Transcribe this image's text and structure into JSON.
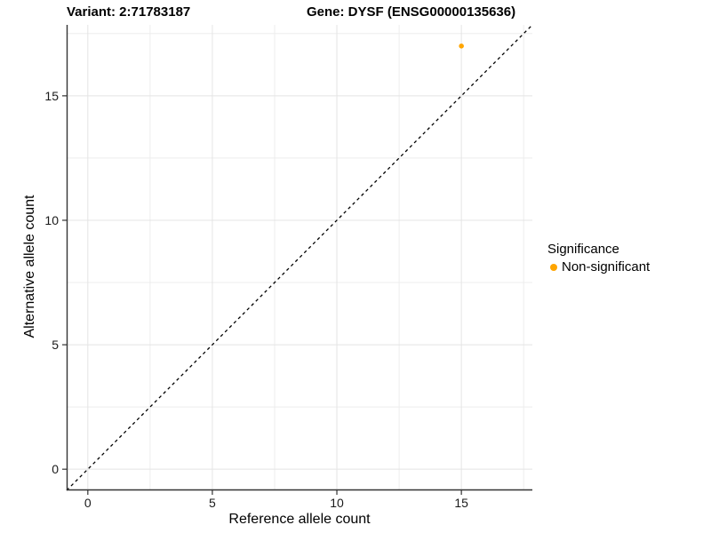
{
  "chart_data": {
    "type": "scatter",
    "titles": [
      "Variant: 2:71783187",
      "Gene: DYSF (ENSG00000135636)"
    ],
    "xlabel": "Reference allele count",
    "ylabel": "Alternative allele count",
    "xlim": [
      -0.85,
      17.85
    ],
    "ylim": [
      -0.85,
      17.85
    ],
    "x_ticks": [
      0,
      5,
      10,
      15
    ],
    "y_ticks": [
      0,
      5,
      10,
      15
    ],
    "x_minor_ticks": [
      2.5,
      7.5,
      12.5,
      17.5
    ],
    "y_minor_ticks": [
      2.5,
      7.5,
      12.5,
      17.5
    ],
    "grid": "major+minor",
    "legend_position": "right",
    "series": [
      {
        "name": "Non-significant",
        "color": "#FFA500",
        "points": [
          {
            "x": 15,
            "y": 17
          }
        ]
      }
    ],
    "reference_line": {
      "kind": "identity y=x",
      "style": "dashed",
      "color": "#000000"
    },
    "legend": {
      "title": "Significance",
      "items": [
        {
          "label": "Non-significant",
          "color": "#FFA500"
        }
      ]
    }
  },
  "colors": {
    "axis": "#333333",
    "tick_label": "#1A1A1A",
    "grid_major": "#E4E4E4",
    "grid_minor": "#EDEDED",
    "background": "#FFFFFF"
  }
}
